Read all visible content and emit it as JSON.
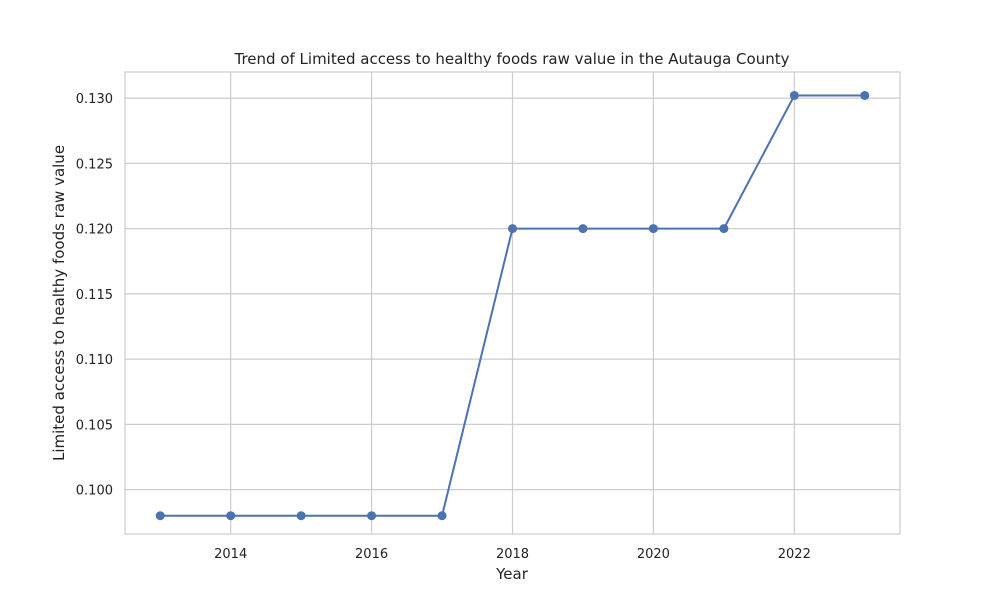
{
  "chart_data": {
    "type": "line",
    "title": "Trend of Limited access to healthy foods raw value in the Autauga County",
    "xlabel": "Year",
    "ylabel": "Limited access to healthy foods raw value",
    "x": [
      2013,
      2014,
      2015,
      2016,
      2017,
      2018,
      2019,
      2020,
      2021,
      2022,
      2023
    ],
    "series": [
      {
        "values": [
          0.098,
          0.098,
          0.098,
          0.098,
          0.098,
          0.12,
          0.12,
          0.12,
          0.12,
          0.1302,
          0.1302
        ]
      }
    ],
    "xlim": [
      2012.5,
      2023.5
    ],
    "ylim": [
      0.0966,
      0.132
    ],
    "x_ticks": [
      2014,
      2016,
      2018,
      2020,
      2022
    ],
    "x_tick_labels": [
      "2014",
      "2016",
      "2018",
      "2020",
      "2022"
    ],
    "y_ticks": [
      0.1,
      0.105,
      0.11,
      0.115,
      0.12,
      0.125,
      0.13
    ],
    "y_tick_labels": [
      "0.100",
      "0.105",
      "0.110",
      "0.115",
      "0.120",
      "0.125",
      "0.130"
    ],
    "grid": true,
    "markers": true,
    "line_color": "#4c72b0",
    "grid_color": "#cccccc"
  }
}
